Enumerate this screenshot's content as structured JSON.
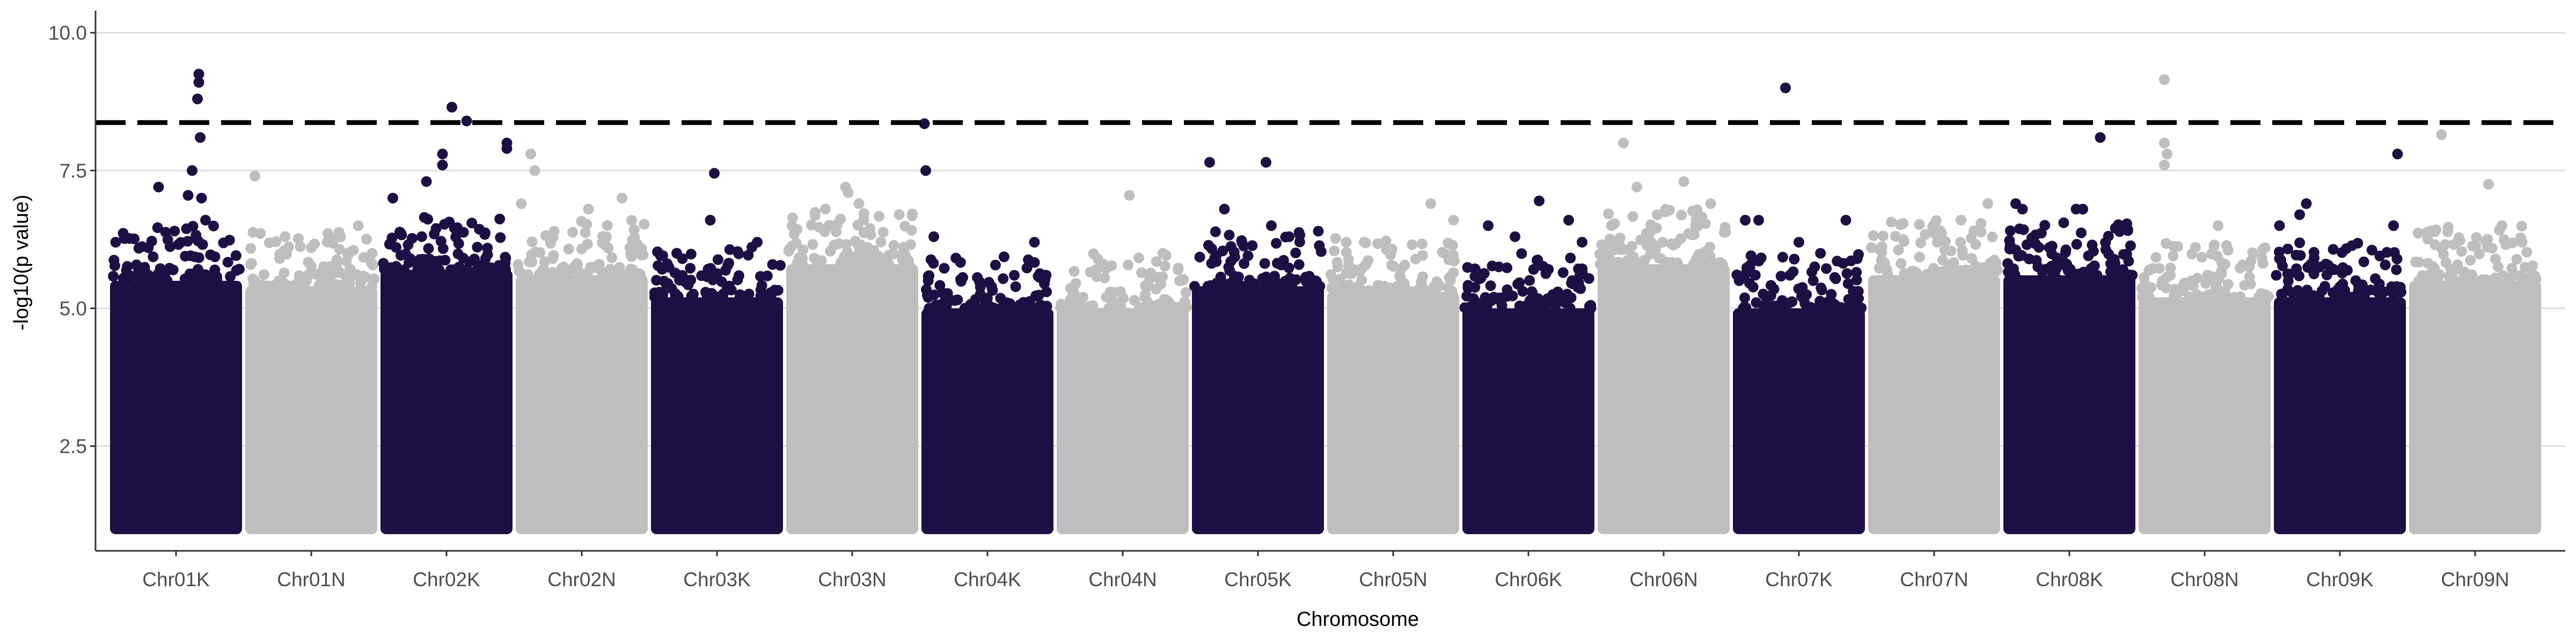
{
  "chart_data": {
    "type": "scatter",
    "title": "",
    "xlabel": "Chromosome",
    "ylabel": "-log10(p value)",
    "ylim": [
      0.6,
      10.4
    ],
    "yticks": [
      2.5,
      5.0,
      7.5,
      10.0
    ],
    "ytick_labels": [
      "2.5",
      "5.0",
      "7.5",
      "10.0"
    ],
    "grid": "horizontal",
    "threshold": 8.37,
    "colors": {
      "dark": "#1d0f43",
      "light": "#bebebe",
      "threshold": "#000000",
      "grid": "#dedede",
      "axis": "#333333"
    },
    "categories": [
      "Chr01K",
      "Chr01N",
      "Chr02K",
      "Chr02N",
      "Chr03K",
      "Chr03N",
      "Chr04K",
      "Chr04N",
      "Chr05K",
      "Chr05N",
      "Chr06K",
      "Chr06N",
      "Chr07K",
      "Chr07N",
      "Chr08K",
      "Chr08N",
      "Chr09K",
      "Chr09N"
    ],
    "chromosomes": [
      {
        "name": "Chr01K",
        "color": "dark",
        "bulk": 5.5,
        "top": [
          [
            0.67,
            9.25
          ],
          [
            0.67,
            9.1
          ],
          [
            0.66,
            8.8
          ],
          [
            0.68,
            8.1
          ],
          [
            0.37,
            7.2
          ],
          [
            0.59,
            7.05
          ],
          [
            0.62,
            7.5
          ],
          [
            0.69,
            7.0
          ],
          [
            0.05,
            6.2
          ],
          [
            0.72,
            6.6
          ]
        ]
      },
      {
        "name": "Chr01N",
        "color": "light",
        "bulk": 5.4,
        "top": [
          [
            0.08,
            7.4
          ],
          [
            0.85,
            6.5
          ],
          [
            0.5,
            6.1
          ],
          [
            0.3,
            6.0
          ]
        ]
      },
      {
        "name": "Chr02K",
        "color": "dark",
        "bulk": 5.7,
        "top": [
          [
            0.54,
            8.65
          ],
          [
            0.65,
            8.4
          ],
          [
            0.47,
            7.8
          ],
          [
            0.47,
            7.6
          ],
          [
            0.95,
            8.0
          ],
          [
            0.95,
            7.9
          ],
          [
            0.35,
            7.3
          ],
          [
            0.1,
            7.0
          ]
        ]
      },
      {
        "name": "Chr02N",
        "color": "light",
        "bulk": 5.6,
        "top": [
          [
            0.12,
            7.8
          ],
          [
            0.15,
            7.5
          ],
          [
            0.05,
            6.9
          ],
          [
            0.55,
            6.8
          ],
          [
            0.8,
            7.0
          ]
        ]
      },
      {
        "name": "Chr03K",
        "color": "dark",
        "bulk": 5.2,
        "top": [
          [
            0.48,
            7.45
          ],
          [
            0.45,
            6.6
          ],
          [
            0.8,
            6.2
          ],
          [
            0.2,
            6.0
          ]
        ]
      },
      {
        "name": "Chr03N",
        "color": "light",
        "bulk": 5.8,
        "top": [
          [
            0.45,
            7.2
          ],
          [
            0.47,
            7.1
          ],
          [
            0.3,
            6.8
          ],
          [
            0.55,
            6.9
          ],
          [
            0.85,
            6.7
          ]
        ]
      },
      {
        "name": "Chr04K",
        "color": "dark",
        "bulk": 5.0,
        "top": [
          [
            0.03,
            8.35
          ],
          [
            0.04,
            7.5
          ],
          [
            0.1,
            6.3
          ],
          [
            0.7,
            5.6
          ],
          [
            0.85,
            6.2
          ]
        ]
      },
      {
        "name": "Chr04N",
        "color": "light",
        "bulk": 5.0,
        "top": [
          [
            0.55,
            7.05
          ],
          [
            0.8,
            6.0
          ],
          [
            0.3,
            5.7
          ]
        ]
      },
      {
        "name": "Chr05K",
        "color": "dark",
        "bulk": 5.4,
        "top": [
          [
            0.14,
            7.65
          ],
          [
            0.56,
            7.65
          ],
          [
            0.25,
            6.8
          ],
          [
            0.6,
            6.5
          ],
          [
            0.95,
            6.4
          ]
        ]
      },
      {
        "name": "Chr05N",
        "color": "light",
        "bulk": 5.3,
        "top": [
          [
            0.78,
            6.9
          ],
          [
            0.95,
            6.6
          ],
          [
            0.15,
            6.2
          ]
        ]
      },
      {
        "name": "Chr06K",
        "color": "dark",
        "bulk": 5.0,
        "top": [
          [
            0.58,
            6.95
          ],
          [
            0.8,
            6.6
          ],
          [
            0.2,
            6.5
          ],
          [
            0.4,
            6.3
          ],
          [
            0.9,
            6.2
          ]
        ]
      },
      {
        "name": "Chr06N",
        "color": "light",
        "bulk": 5.8,
        "top": [
          [
            0.2,
            8.0
          ],
          [
            0.3,
            7.2
          ],
          [
            0.65,
            7.3
          ],
          [
            0.85,
            6.9
          ]
        ]
      },
      {
        "name": "Chr07K",
        "color": "dark",
        "bulk": 5.0,
        "top": [
          [
            0.4,
            9.0
          ],
          [
            0.1,
            6.6
          ],
          [
            0.2,
            6.6
          ],
          [
            0.85,
            6.6
          ],
          [
            0.5,
            6.2
          ]
        ]
      },
      {
        "name": "Chr07N",
        "color": "light",
        "bulk": 5.6,
        "top": [
          [
            0.5,
            6.5
          ],
          [
            0.7,
            6.6
          ],
          [
            0.9,
            6.9
          ]
        ]
      },
      {
        "name": "Chr08K",
        "color": "dark",
        "bulk": 5.6,
        "top": [
          [
            0.73,
            8.1
          ],
          [
            0.1,
            6.9
          ],
          [
            0.15,
            6.8
          ],
          [
            0.55,
            6.8
          ],
          [
            0.6,
            6.8
          ],
          [
            0.35,
            6.1
          ]
        ]
      },
      {
        "name": "Chr08N",
        "color": "light",
        "bulk": 5.2,
        "top": [
          [
            0.2,
            9.15
          ],
          [
            0.2,
            8.0
          ],
          [
            0.22,
            7.8
          ],
          [
            0.2,
            7.6
          ],
          [
            0.6,
            6.5
          ],
          [
            0.95,
            6.1
          ]
        ]
      },
      {
        "name": "Chr09K",
        "color": "dark",
        "bulk": 5.2,
        "top": [
          [
            0.93,
            7.8
          ],
          [
            0.25,
            6.9
          ],
          [
            0.2,
            6.7
          ],
          [
            0.9,
            6.5
          ],
          [
            0.05,
            6.5
          ]
        ]
      },
      {
        "name": "Chr09N",
        "color": "light",
        "bulk": 5.5,
        "top": [
          [
            0.25,
            8.15
          ],
          [
            0.6,
            7.25
          ],
          [
            0.7,
            6.5
          ],
          [
            0.85,
            6.2
          ]
        ]
      }
    ]
  }
}
